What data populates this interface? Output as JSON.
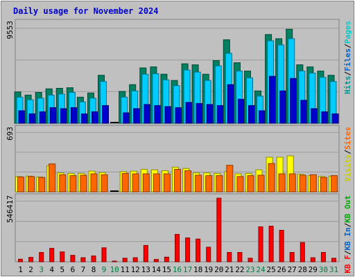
{
  "chart_data": {
    "type": "bar",
    "title": "Daily usage for November 2024",
    "categories": [
      "1",
      "2",
      "3",
      "4",
      "5",
      "6",
      "7",
      "8",
      "9",
      "10",
      "11",
      "12",
      "13",
      "14",
      "15",
      "16",
      "17",
      "18",
      "19",
      "20",
      "21",
      "22",
      "23",
      "24",
      "25",
      "26",
      "27",
      "28",
      "29",
      "30",
      "31"
    ],
    "weekend_color": "#008040",
    "weekday_color": "#000000",
    "weekend_days": [
      "3",
      "9",
      "10",
      "16",
      "17",
      "23",
      "24",
      "30",
      "31"
    ],
    "panels": [
      {
        "id": "top",
        "max_label": "9553",
        "ylim": [
          0,
          9553
        ],
        "right_labels": [
          {
            "text": "Hits",
            "color": "#009999"
          },
          {
            "text": "/",
            "color": "#000000"
          },
          {
            "text": "Files",
            "color": "#0066cc"
          },
          {
            "text": "/",
            "color": "#000000"
          },
          {
            "text": "Pages",
            "color": "#00cccc"
          }
        ],
        "series": [
          {
            "name": "Hits",
            "color": "#008060",
            "values": [
              3000,
              2700,
              2950,
              3300,
              3350,
              3400,
              2500,
              2900,
              4600,
              0,
              3050,
              3700,
              5300,
              5400,
              4700,
              4100,
              5700,
              5600,
              4700,
              6000,
              8000,
              5800,
              5000,
              3100,
              8500,
              8100,
              9000,
              5600,
              5400,
              5000,
              4600
            ]
          },
          {
            "name": "Files",
            "color": "#00ccff",
            "values": [
              2500,
              2250,
              2400,
              2700,
              2800,
              2950,
              2050,
              2400,
              4000,
              0,
              2500,
              3100,
              4700,
              4750,
              4150,
              3600,
              5100,
              4900,
              4100,
              5500,
              6700,
              5000,
              4350,
              2600,
              7900,
              7500,
              8100,
              5000,
              4800,
              4400,
              4000
            ]
          },
          {
            "name": "Pages",
            "color": "#0000cc",
            "values": [
              1200,
              900,
              1100,
              1500,
              1400,
              1500,
              900,
              1100,
              1700,
              0,
              1000,
              1400,
              1800,
              1700,
              1600,
              1500,
              2000,
              1900,
              1800,
              1700,
              3700,
              2300,
              1700,
              1200,
              4500,
              3100,
              4300,
              2200,
              1400,
              1100,
              900
            ]
          }
        ]
      },
      {
        "id": "middle",
        "max_label": "693",
        "ylim": [
          0,
          693
        ],
        "right_labels": [
          {
            "text": "Visits",
            "color": "#cccc00"
          },
          {
            "text": "/",
            "color": "#000000"
          },
          {
            "text": "Sites",
            "color": "#ff6600"
          }
        ],
        "series": [
          {
            "name": "Visits",
            "color": "#ffff00",
            "values": [
              170,
              175,
              165,
              290,
              210,
              205,
              205,
              230,
              215,
              0,
              225,
              230,
              250,
              245,
              235,
              275,
              260,
              210,
              210,
              205,
              225,
              200,
              205,
              245,
              385,
              385,
              400,
              195,
              180,
              170,
              175
            ]
          },
          {
            "name": "Sites",
            "color": "#ff6600",
            "values": [
              165,
              170,
              160,
              310,
              190,
              180,
              185,
              200,
              190,
              0,
              205,
              200,
              200,
              200,
              200,
              250,
              235,
              185,
              180,
              180,
              295,
              170,
              180,
              185,
              315,
              200,
              200,
              185,
              190,
              160,
              180
            ]
          }
        ]
      },
      {
        "id": "bottom",
        "max_label": "546417",
        "ylim": [
          0,
          546417
        ],
        "right_labels": [
          {
            "text": "KB F",
            "color": "#ff0000"
          },
          {
            "text": "/",
            "color": "#000000"
          },
          {
            "text": "KB In",
            "color": "#0066cc"
          },
          {
            "text": "/",
            "color": "#000000"
          },
          {
            "text": "KB Out",
            "color": "#00aa00"
          }
        ],
        "series": [
          {
            "name": "KB F",
            "color": "#ff0000",
            "values": [
              22000,
              38000,
              80000,
              115000,
              85000,
              55000,
              35000,
              50000,
              120000,
              4000,
              30000,
              35000,
              140000,
              20000,
              40000,
              235000,
              205000,
              195000,
              125000,
              546000,
              80000,
              80000,
              30000,
              300000,
              305000,
              270000,
              80000,
              165000,
              35000,
              80000,
              30000
            ]
          }
        ]
      }
    ]
  }
}
